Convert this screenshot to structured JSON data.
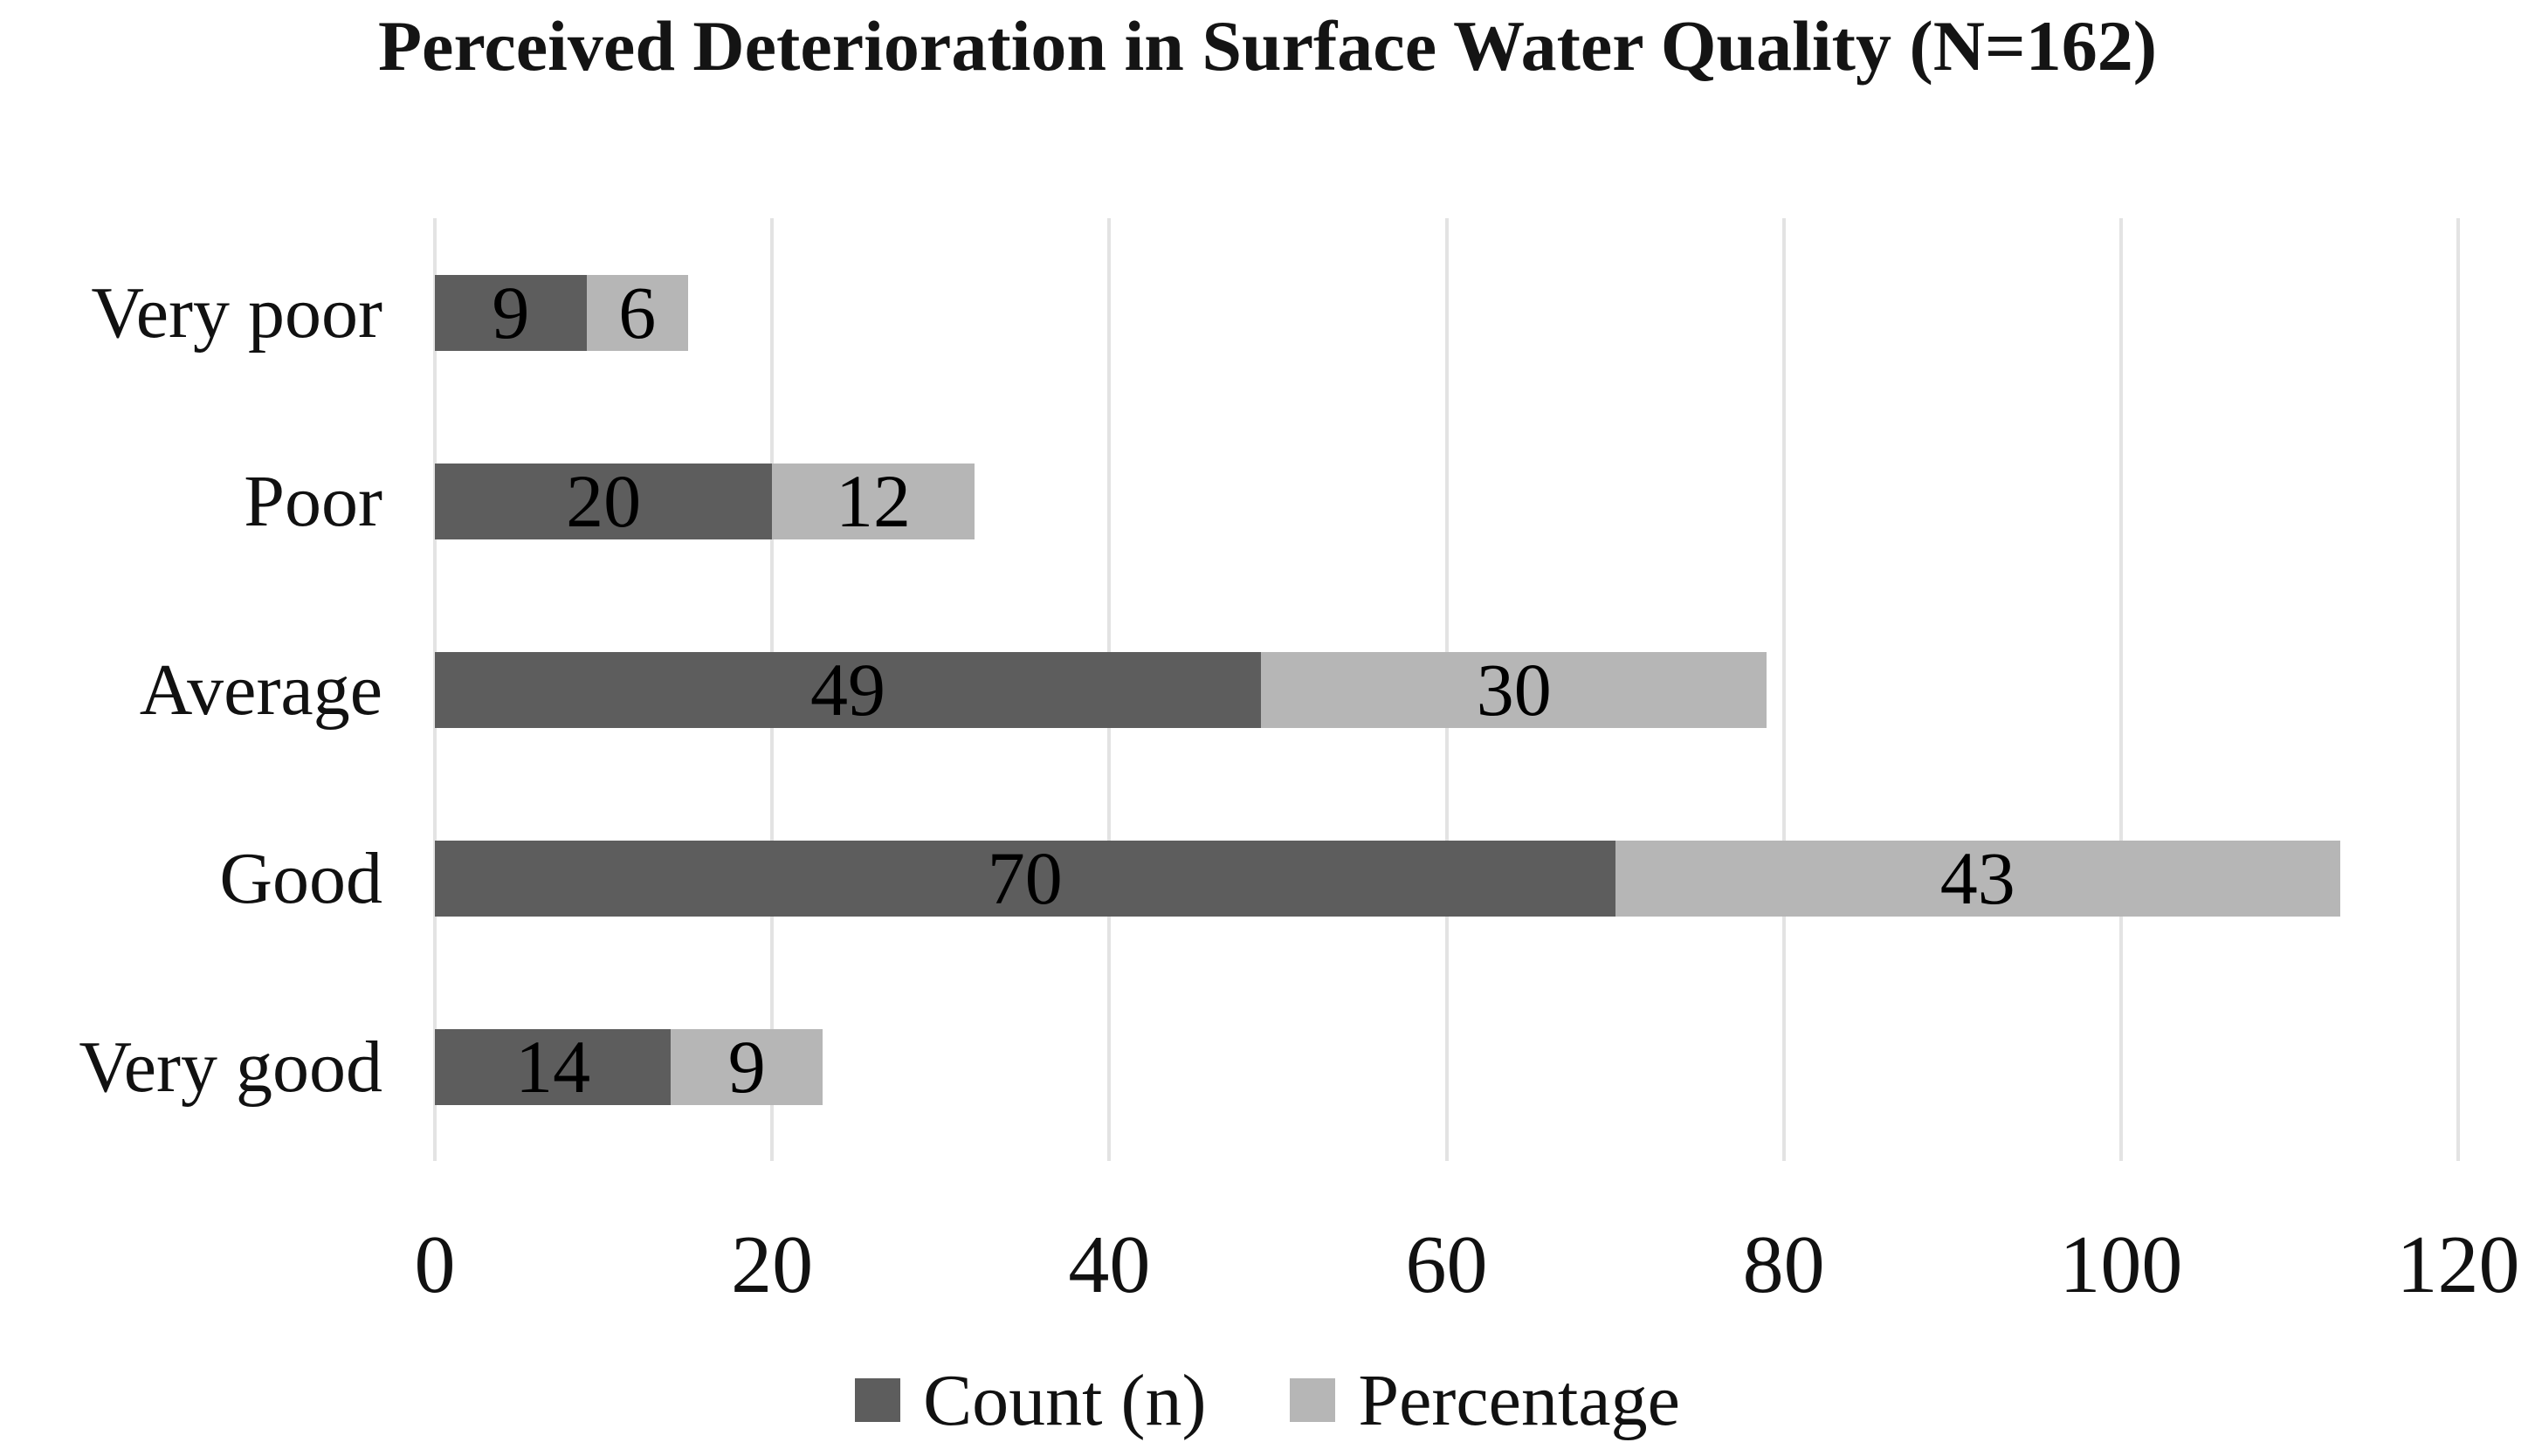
{
  "figure": {
    "background": "#ffffff"
  },
  "chart_data": {
    "type": "bar",
    "orientation": "horizontal",
    "stacked": true,
    "title": "Perceived Deterioration in Surface Water Quality (N=162)",
    "categories": [
      "Very poor",
      "Poor",
      "Average",
      "Good",
      "Very good"
    ],
    "series": [
      {
        "name": "Count (n)",
        "color": "#5d5d5d",
        "values": [
          9,
          20,
          49,
          70,
          14
        ]
      },
      {
        "name": "Percentage",
        "color": "#b6b6b6",
        "values": [
          6,
          12,
          30,
          43,
          9
        ]
      }
    ],
    "xlabel": "",
    "ylabel": "",
    "xlim": [
      0,
      120
    ],
    "xticks": [
      0,
      20,
      40,
      60,
      80,
      100,
      120
    ],
    "grid": "vertical-only",
    "gridline_color": "#e3e3e3",
    "bar_label_color": "#000000",
    "text_color": "#111111",
    "legend_position": "bottom"
  }
}
